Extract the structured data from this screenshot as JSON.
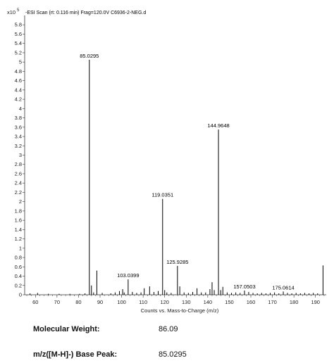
{
  "chart_data": {
    "type": "bar",
    "title": "-ESI Scan (rt: 0.116 min) Frag=120.0V C6936-2-NEG.d",
    "ylabel_multiplier": "x10",
    "ylabel_exponent": "5",
    "xlabel": "Counts vs. Mass-to-Charge (m/z)",
    "xlim": [
      55,
      195
    ],
    "ylim": [
      0,
      6.0
    ],
    "xticks": [
      60,
      70,
      80,
      90,
      100,
      110,
      120,
      130,
      140,
      150,
      160,
      170,
      180,
      190
    ],
    "yticks": [
      0,
      0.2,
      0.4,
      0.6,
      0.8,
      1,
      1.2,
      1.4,
      1.6,
      1.8,
      2,
      2.2,
      2.4,
      2.6,
      2.8,
      3,
      3.2,
      3.4,
      3.6,
      3.8,
      4,
      4.2,
      4.4,
      4.6,
      4.8,
      5,
      5.2,
      5.4,
      5.6,
      5.8
    ],
    "peaks": [
      {
        "mz": 57.5,
        "intensity": 0.03
      },
      {
        "mz": 61.0,
        "intensity": 0.04
      },
      {
        "mz": 66.0,
        "intensity": 0.02
      },
      {
        "mz": 71.0,
        "intensity": 0.02
      },
      {
        "mz": 76.0,
        "intensity": 0.02
      },
      {
        "mz": 80.5,
        "intensity": 0.02
      },
      {
        "mz": 83.0,
        "intensity": 0.03
      },
      {
        "mz": 85.0295,
        "intensity": 5.05,
        "label": "85.0295"
      },
      {
        "mz": 86.0,
        "intensity": 0.2
      },
      {
        "mz": 87.0,
        "intensity": 0.05
      },
      {
        "mz": 88.5,
        "intensity": 0.52
      },
      {
        "mz": 91.0,
        "intensity": 0.04
      },
      {
        "mz": 95.0,
        "intensity": 0.03
      },
      {
        "mz": 97.0,
        "intensity": 0.05
      },
      {
        "mz": 99.0,
        "intensity": 0.08
      },
      {
        "mz": 100.5,
        "intensity": 0.12
      },
      {
        "mz": 101.2,
        "intensity": 0.05
      },
      {
        "mz": 103.0399,
        "intensity": 0.33,
        "label": "103.0399"
      },
      {
        "mz": 105.0,
        "intensity": 0.06
      },
      {
        "mz": 107.0,
        "intensity": 0.04
      },
      {
        "mz": 109.0,
        "intensity": 0.05
      },
      {
        "mz": 110.5,
        "intensity": 0.14
      },
      {
        "mz": 113.0,
        "intensity": 0.18
      },
      {
        "mz": 115.0,
        "intensity": 0.06
      },
      {
        "mz": 117.0,
        "intensity": 0.08
      },
      {
        "mz": 119.0351,
        "intensity": 2.06,
        "label": "119.0351"
      },
      {
        "mz": 120.0,
        "intensity": 0.1
      },
      {
        "mz": 121.0,
        "intensity": 0.05
      },
      {
        "mz": 123.0,
        "intensity": 0.04
      },
      {
        "mz": 125.9285,
        "intensity": 0.62,
        "label": "125.9285"
      },
      {
        "mz": 127.0,
        "intensity": 0.18
      },
      {
        "mz": 129.0,
        "intensity": 0.05
      },
      {
        "mz": 131.0,
        "intensity": 0.04
      },
      {
        "mz": 133.0,
        "intensity": 0.06
      },
      {
        "mz": 135.0,
        "intensity": 0.14
      },
      {
        "mz": 137.0,
        "intensity": 0.05
      },
      {
        "mz": 139.0,
        "intensity": 0.05
      },
      {
        "mz": 141.0,
        "intensity": 0.12
      },
      {
        "mz": 142.0,
        "intensity": 0.27
      },
      {
        "mz": 143.0,
        "intensity": 0.1
      },
      {
        "mz": 144.9648,
        "intensity": 3.55,
        "label": "144.9648"
      },
      {
        "mz": 146.0,
        "intensity": 0.1
      },
      {
        "mz": 147.0,
        "intensity": 0.17
      },
      {
        "mz": 149.0,
        "intensity": 0.05
      },
      {
        "mz": 151.0,
        "intensity": 0.04
      },
      {
        "mz": 153.0,
        "intensity": 0.05
      },
      {
        "mz": 155.0,
        "intensity": 0.04
      },
      {
        "mz": 157.0503,
        "intensity": 0.09,
        "label": "157.0503"
      },
      {
        "mz": 159.0,
        "intensity": 0.06
      },
      {
        "mz": 161.0,
        "intensity": 0.04
      },
      {
        "mz": 163.0,
        "intensity": 0.03
      },
      {
        "mz": 165.0,
        "intensity": 0.04
      },
      {
        "mz": 167.0,
        "intensity": 0.03
      },
      {
        "mz": 169.0,
        "intensity": 0.04
      },
      {
        "mz": 171.0,
        "intensity": 0.05
      },
      {
        "mz": 173.0,
        "intensity": 0.03
      },
      {
        "mz": 175.0614,
        "intensity": 0.07,
        "label": "175.0614"
      },
      {
        "mz": 177.0,
        "intensity": 0.04
      },
      {
        "mz": 179.0,
        "intensity": 0.03
      },
      {
        "mz": 181.0,
        "intensity": 0.04
      },
      {
        "mz": 183.0,
        "intensity": 0.03
      },
      {
        "mz": 185.0,
        "intensity": 0.04
      },
      {
        "mz": 187.0,
        "intensity": 0.03
      },
      {
        "mz": 189.0,
        "intensity": 0.04
      },
      {
        "mz": 191.0,
        "intensity": 0.03
      },
      {
        "mz": 193.5,
        "intensity": 0.63
      }
    ]
  },
  "info": {
    "mw_label": "Molecular Weight:",
    "mw_value": "86.09",
    "peak_label": "m/z([M-H]-) Base Peak:",
    "peak_value": "85.0295"
  }
}
